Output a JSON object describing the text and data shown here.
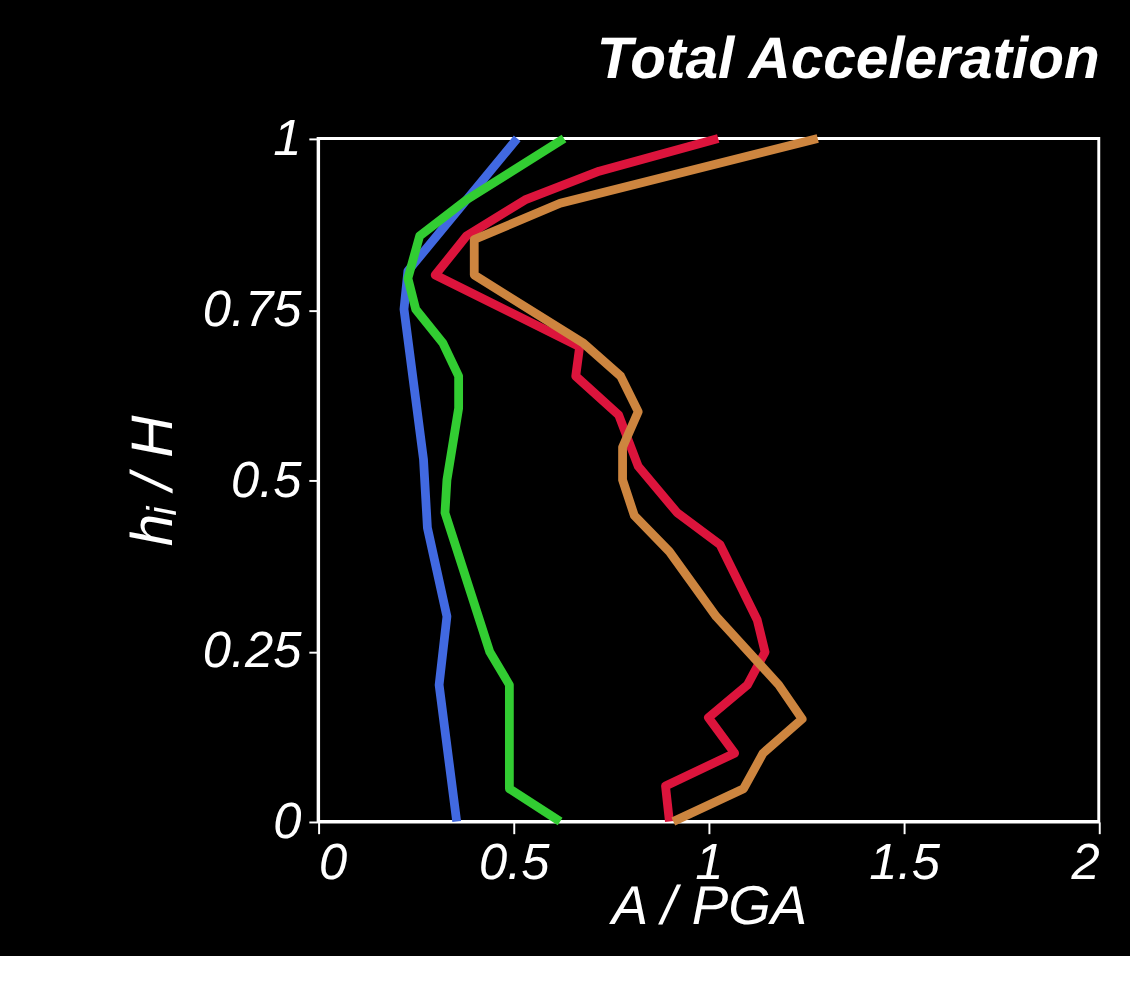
{
  "chart_data": {
    "type": "line",
    "title": "Total Acceleration",
    "xlabel": "A / PGA",
    "ylabel": "hᵢ / H",
    "xlim": [
      0,
      2
    ],
    "xticks": [
      0,
      0.5,
      1,
      1.5,
      2
    ],
    "ylim": [
      0,
      1
    ],
    "yticks": [
      0,
      0.25,
      0.5,
      0.75,
      1
    ],
    "grid": false,
    "legend": false,
    "marker": "none",
    "line_style": "solid",
    "series": [
      {
        "color": "#4169e1",
        "x": [
          0.355,
          0.31,
          0.33,
          0.28,
          0.27,
          0.22,
          0.23,
          0.51
        ],
        "values": [
          0,
          0.2,
          0.3,
          0.43,
          0.53,
          0.75,
          0.806,
          1.0
        ]
      },
      {
        "color": "#32cd32",
        "x": [
          0.62,
          0.49,
          0.49,
          0.44,
          0.325,
          0.33,
          0.36,
          0.36,
          0.32,
          0.25,
          0.23,
          0.26,
          0.38,
          0.63
        ],
        "values": [
          0,
          0.048,
          0.2,
          0.248,
          0.452,
          0.5,
          0.605,
          0.652,
          0.7,
          0.75,
          0.795,
          0.857,
          0.91,
          1.0
        ]
      },
      {
        "color": "#dc143c",
        "x": [
          0.9,
          0.89,
          1.067,
          1.0,
          1.1,
          1.145,
          1.125,
          1.03,
          0.92,
          0.82,
          0.77,
          0.66,
          0.67,
          0.3,
          0.38,
          0.53,
          0.72,
          1.025
        ],
        "values": [
          0,
          0.052,
          0.1,
          0.152,
          0.2,
          0.248,
          0.295,
          0.405,
          0.452,
          0.52,
          0.595,
          0.652,
          0.695,
          0.8,
          0.857,
          0.91,
          0.952,
          1.0
        ]
      },
      {
        "color": "#cd853f",
        "x": [
          0.91,
          1.09,
          1.14,
          1.24,
          1.18,
          1.02,
          0.9,
          0.81,
          0.78,
          0.78,
          0.82,
          0.775,
          0.68,
          0.4,
          0.4,
          0.62,
          1.28
        ],
        "values": [
          0,
          0.048,
          0.1,
          0.15,
          0.2,
          0.3,
          0.395,
          0.448,
          0.5,
          0.548,
          0.6,
          0.652,
          0.7,
          0.8,
          0.852,
          0.905,
          1.0
        ]
      }
    ]
  }
}
